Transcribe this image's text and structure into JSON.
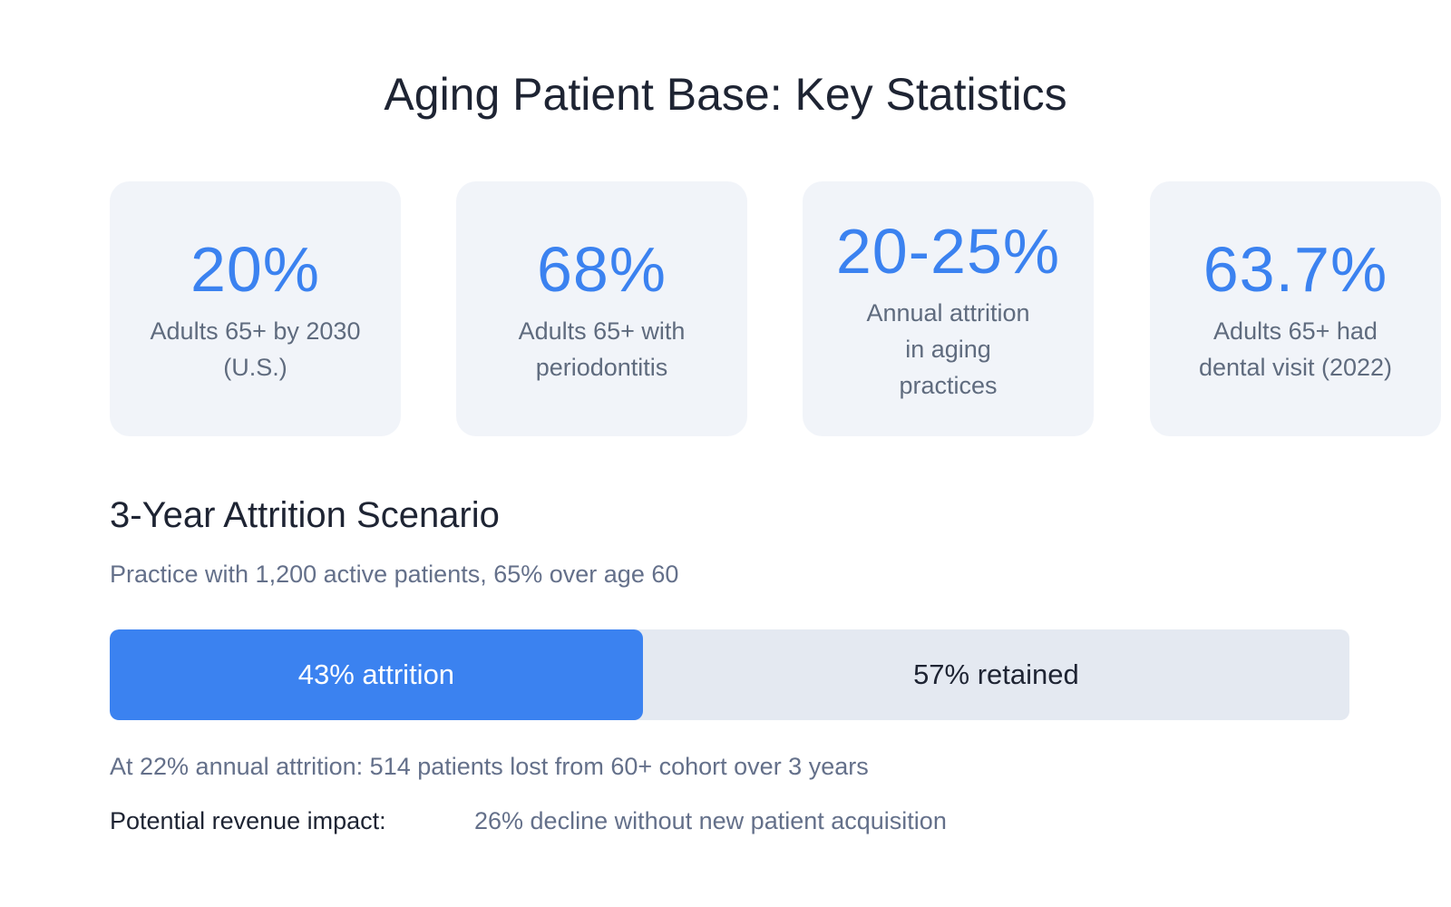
{
  "page": {
    "title": "Aging Patient Base: Key Statistics"
  },
  "stats": [
    {
      "value": "20%",
      "label": "Adults 65+ by 2030 (U.S.)"
    },
    {
      "value": "68%",
      "label": "Adults 65+ with periodontitis"
    },
    {
      "value": "20-25%",
      "label": "Annual attrition in aging practices"
    },
    {
      "value": "63.7%",
      "label": "Adults 65+ had dental visit (2022)"
    }
  ],
  "scenario": {
    "title": "3-Year Attrition Scenario",
    "subtitle": "Practice with 1,200 active patients, 65% over age 60",
    "bar": {
      "attrition_fraction": 0.43,
      "attrition_label": "43% attrition",
      "retained_label": "57% retained"
    },
    "note": "At 22% annual attrition: 514 patients lost from 60+ cohort over 3 years",
    "impact_label": "Potential revenue impact:",
    "impact_value": "26% decline without new patient acquisition"
  },
  "colors": {
    "accent": "#3b82f0",
    "card_bg": "#f1f4f9",
    "track_bg": "#e4e9f1",
    "muted_text": "#64708a",
    "dark_text": "#1e2433"
  }
}
